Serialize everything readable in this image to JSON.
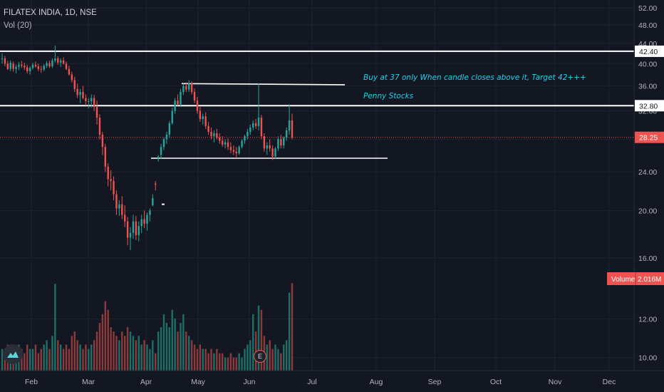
{
  "header": {
    "symbol_line": "FILATEX INDIA, 1D, NSE",
    "volume_line": "Vol (20)"
  },
  "annotations": {
    "buy_note": "Buy at 37 only When candle closes above it, Target 42+++",
    "penny_note": "Penny Stocks"
  },
  "price_axis": {
    "ticks": [
      "52.00",
      "48.00",
      "44.00",
      "40.00",
      "36.00",
      "32.00",
      "28.00",
      "24.00",
      "20.00",
      "16.00",
      "12.00",
      "10.00"
    ],
    "tick_values": [
      52,
      48,
      44,
      40,
      36,
      32,
      28,
      24,
      20,
      16,
      12,
      10
    ],
    "labels": [
      {
        "text": "42.40",
        "value": 42.4,
        "color": "#ffffff",
        "text_color": "#131722"
      },
      {
        "text": "32.80",
        "value": 32.8,
        "color": "#ffffff",
        "text_color": "#131722"
      },
      {
        "text": "28.25",
        "value": 28.25,
        "color": "#ef5350",
        "text_color": "#ffffff"
      }
    ],
    "volume_label": "Volume",
    "volume_value": "2.016M"
  },
  "time_axis": [
    "Feb",
    "Mar",
    "Apr",
    "May",
    "Jun",
    "Jul",
    "Aug",
    "Sep",
    "Oct",
    "Nov",
    "Dec"
  ],
  "earnings_badge": "E",
  "colors": {
    "up": "#26a69a",
    "down": "#ef5350",
    "up_vol": "#1e6f68",
    "down_vol": "#8e3a3a",
    "background": "#131722",
    "grid": "#1f2330"
  },
  "chart_data": {
    "type": "candlestick",
    "title": "FILATEX INDIA, 1D, NSE",
    "interval": "1D",
    "ylim": [
      9.4,
      54
    ],
    "scale": "log",
    "last_price": 28.25,
    "levels": [
      42.4,
      32.8
    ],
    "trendlines": [
      {
        "from": [
          "2021-04-22",
          36.4
        ],
        "to": [
          "2021-07-15",
          36.2
        ]
      },
      {
        "from": [
          "2021-04-01",
          25.6
        ],
        "to": [
          "2021-07-25",
          25.6
        ]
      }
    ],
    "ohlc": [
      [
        41,
        42,
        40,
        41
      ],
      [
        41,
        41.5,
        39.5,
        40
      ],
      [
        40,
        40.5,
        38.8,
        39
      ],
      [
        39,
        40.6,
        38.6,
        40.2
      ],
      [
        40,
        40.4,
        38.5,
        39
      ],
      [
        39,
        39.8,
        38.2,
        39.4
      ],
      [
        39.4,
        40.3,
        38.8,
        39.8
      ],
      [
        39.8,
        40.5,
        39.2,
        39.6
      ],
      [
        39.6,
        40.2,
        38.8,
        39.3
      ],
      [
        39.3,
        39.8,
        38.2,
        38.6
      ],
      [
        38.6,
        39.5,
        38,
        39.2
      ],
      [
        39.2,
        40.2,
        38.9,
        39.8
      ],
      [
        39.8,
        40.4,
        39.2,
        39.5
      ],
      [
        39.5,
        40,
        38.6,
        39
      ],
      [
        39,
        39.6,
        38.3,
        38.9
      ],
      [
        38.9,
        39.9,
        38.6,
        39.6
      ],
      [
        39.6,
        40.5,
        39.2,
        40.1
      ],
      [
        40.1,
        40.6,
        39.2,
        39.5
      ],
      [
        39.5,
        41,
        39.2,
        40.6
      ],
      [
        40.6,
        43.6,
        40.2,
        41
      ],
      [
        41,
        41.4,
        39.8,
        40.2
      ],
      [
        40.2,
        41,
        39.4,
        40.6
      ],
      [
        40.6,
        41.2,
        39.8,
        40
      ],
      [
        40,
        40.4,
        38.8,
        39
      ],
      [
        39,
        39.6,
        37.8,
        38
      ],
      [
        38,
        38.5,
        36.6,
        37
      ],
      [
        37,
        37.6,
        35,
        35.5
      ],
      [
        35.5,
        36.4,
        34,
        34.5
      ],
      [
        34.5,
        35.5,
        33.2,
        35
      ],
      [
        35,
        36,
        33.8,
        34
      ],
      [
        34,
        34.6,
        32.8,
        33.5
      ],
      [
        33.5,
        34,
        32.4,
        33.5
      ],
      [
        33.5,
        34.6,
        32.5,
        34
      ],
      [
        34,
        34.5,
        32,
        32.6
      ],
      [
        32.6,
        33.6,
        30,
        31
      ],
      [
        31,
        31.5,
        28,
        28.6
      ],
      [
        28.6,
        29,
        26,
        27
      ],
      [
        27,
        27.4,
        24,
        24.6
      ],
      [
        24.6,
        25,
        22.4,
        23.2
      ],
      [
        23.2,
        24.2,
        22,
        23
      ],
      [
        23,
        23.5,
        21,
        21.6
      ],
      [
        21.6,
        22,
        19.6,
        20.2
      ],
      [
        20.2,
        21,
        19.5,
        20.6
      ],
      [
        20.6,
        21.4,
        19.2,
        19.6
      ],
      [
        19.6,
        20.5,
        18.5,
        19
      ],
      [
        19,
        19.4,
        17,
        17.6
      ],
      [
        17.6,
        18.5,
        16.6,
        18
      ],
      [
        18,
        19.6,
        17.5,
        19
      ],
      [
        19,
        19.5,
        17.4,
        17.8
      ],
      [
        17.8,
        19,
        17.3,
        18.6
      ],
      [
        18.6,
        19.6,
        18,
        19.2
      ],
      [
        19.2,
        20,
        18.4,
        18.8
      ],
      [
        18.8,
        19.8,
        18.2,
        19.6
      ],
      [
        19.6,
        20.2,
        19,
        20
      ],
      [
        20.5,
        21.6,
        20.4,
        21.2
      ],
      [
        22.7,
        23,
        22,
        22.6
      ],
      [
        25.6,
        26,
        25.2,
        25.8
      ],
      [
        26,
        27.4,
        25.5,
        27
      ],
      [
        27,
        28.2,
        26.6,
        28
      ],
      [
        28,
        29,
        27.4,
        28.6
      ],
      [
        28.6,
        30.5,
        28.2,
        30.2
      ],
      [
        30.2,
        32.5,
        30,
        32
      ],
      [
        32,
        34,
        31.6,
        33.6
      ],
      [
        33.6,
        34.6,
        32.8,
        33
      ],
      [
        33,
        35.5,
        32.6,
        35
      ],
      [
        35,
        36.4,
        34.5,
        36
      ],
      [
        36,
        36.6,
        35,
        35.4
      ],
      [
        35.4,
        37,
        35,
        36.5
      ],
      [
        36.5,
        36.8,
        34.6,
        35
      ],
      [
        35,
        35.6,
        33.2,
        33.6
      ],
      [
        33.6,
        34.2,
        31.6,
        32
      ],
      [
        32,
        32.6,
        30.4,
        30.8
      ],
      [
        30.8,
        31.6,
        30,
        31.2
      ],
      [
        31.2,
        31.8,
        29.4,
        29.8
      ],
      [
        29.8,
        30.4,
        28.6,
        29
      ],
      [
        29,
        29.6,
        28,
        28.4
      ],
      [
        28.4,
        29.2,
        27.6,
        28.8
      ],
      [
        28.8,
        29.4,
        28,
        28.2
      ],
      [
        28.2,
        28.8,
        27.4,
        27.8
      ],
      [
        27.8,
        28.4,
        27,
        27.3
      ],
      [
        27.3,
        28,
        26.8,
        27.6
      ],
      [
        27.6,
        28.1,
        26.6,
        27
      ],
      [
        27,
        27.6,
        26.2,
        26.6
      ],
      [
        26.6,
        27.2,
        26,
        26.4
      ],
      [
        26.4,
        27,
        25.6,
        26.2
      ],
      [
        26.2,
        27.2,
        26,
        27
      ],
      [
        27,
        28,
        26.8,
        27.8
      ],
      [
        27.8,
        28.6,
        27.4,
        28.4
      ],
      [
        28.4,
        29.4,
        28,
        29
      ],
      [
        29,
        30,
        28.6,
        29.6
      ],
      [
        29.6,
        30.6,
        29.2,
        30.2
      ],
      [
        30.2,
        30.8,
        29.4,
        29.8
      ],
      [
        29.8,
        36.4,
        29.2,
        31
      ],
      [
        31,
        31.4,
        28,
        28.4
      ],
      [
        28.4,
        28.8,
        26.4,
        26.8
      ],
      [
        26.8,
        27.6,
        26,
        27.2
      ],
      [
        27.2,
        28,
        26.4,
        26.8
      ],
      [
        26.8,
        27.2,
        25.4,
        25.8
      ],
      [
        25.8,
        27,
        25.5,
        26.8
      ],
      [
        26.8,
        28.4,
        26.5,
        28
      ],
      [
        28,
        28.6,
        26.8,
        27.2
      ],
      [
        27.2,
        28.4,
        26.8,
        28.2
      ],
      [
        28.2,
        29.6,
        27.8,
        29.2
      ],
      [
        29.2,
        33,
        28.6,
        30.6
      ],
      [
        30.6,
        31.6,
        28,
        28.25
      ]
    ],
    "volume_millions": [
      0.5,
      0.4,
      0.6,
      0.5,
      0.4,
      0.5,
      0.6,
      0.5,
      0.4,
      0.6,
      0.5,
      0.5,
      0.6,
      0.4,
      0.5,
      0.6,
      0.7,
      0.5,
      0.8,
      2.0,
      0.7,
      0.6,
      0.5,
      0.6,
      0.5,
      0.8,
      0.9,
      0.7,
      0.6,
      0.5,
      0.6,
      0.5,
      0.6,
      0.7,
      0.9,
      1.1,
      1.3,
      1.6,
      1.4,
      1.0,
      0.9,
      0.8,
      0.7,
      0.9,
      0.8,
      1.0,
      0.9,
      0.8,
      0.7,
      0.8,
      0.6,
      0.7,
      0.6,
      0.5,
      0.7,
      0.4,
      0.9,
      1.0,
      1.3,
      1.1,
      1.0,
      1.4,
      1.2,
      0.9,
      1.1,
      1.3,
      0.9,
      0.8,
      0.7,
      0.6,
      0.5,
      0.6,
      0.5,
      0.5,
      0.4,
      0.5,
      0.4,
      0.5,
      0.4,
      0.4,
      0.3,
      0.3,
      0.4,
      0.3,
      0.3,
      0.4,
      0.3,
      0.5,
      0.6,
      0.7,
      1.3,
      0.9,
      1.5,
      1.4,
      0.8,
      0.6,
      0.7,
      0.5,
      0.6,
      0.5,
      0.4,
      0.6,
      0.7,
      1.8,
      2.016
    ]
  }
}
